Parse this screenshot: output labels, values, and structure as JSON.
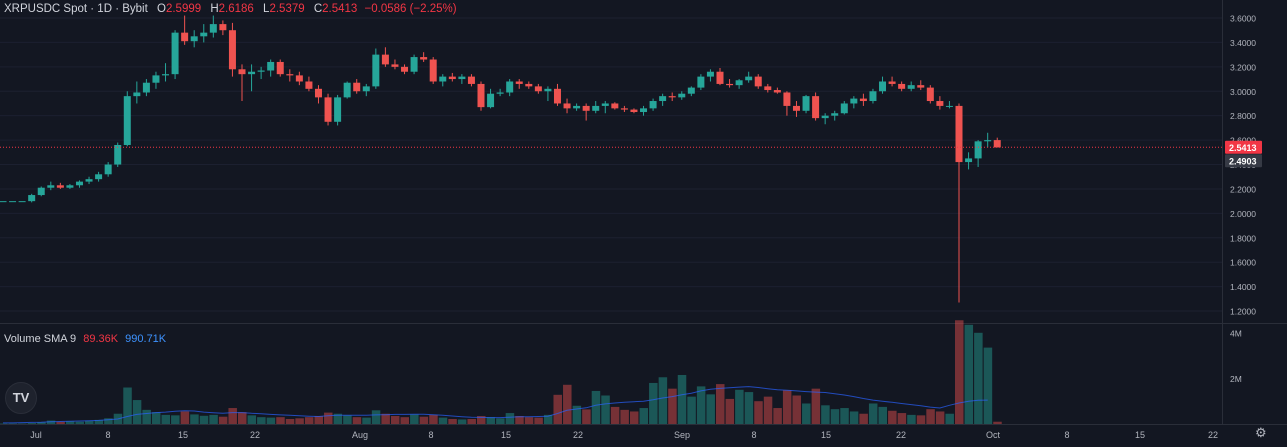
{
  "header": {
    "symbol": "XRPUSDC Spot · 1D · Bybit",
    "o_label": "O",
    "o_value": "2.5999",
    "h_label": "H",
    "h_value": "2.6186",
    "l_label": "L",
    "l_value": "2.5379",
    "c_label": "C",
    "c_value": "2.5413",
    "change": "−0.0586 (−2.25%)"
  },
  "volume_legend": {
    "label": "Volume SMA 9",
    "volume": "89.36K",
    "sma": "990.71K"
  },
  "logo_text": "TV",
  "settings_icon": "gear-icon",
  "colors": {
    "up": "#26a69a",
    "down": "#ef5350",
    "bg": "#131722",
    "sma": "#2962ff"
  },
  "chart_data": {
    "type": "candlestick",
    "price_axis": {
      "ticks": [
        "3.6000",
        "3.4000",
        "3.2000",
        "3.0000",
        "2.8000",
        "2.6000",
        "2.4000",
        "2.2000",
        "2.0000",
        "1.8000",
        "1.6000",
        "1.4000",
        "1.2000"
      ],
      "min": 1.1,
      "max": 3.7
    },
    "volume_axis": {
      "ticks": [
        "4M",
        "2M"
      ],
      "max": 4.3
    },
    "x_labels": [
      "Jul",
      "8",
      "15",
      "22",
      "Aug",
      "8",
      "15",
      "22",
      "Sep",
      "8",
      "15",
      "22",
      "Oct",
      "8",
      "15",
      "22"
    ],
    "last_price": "2.5413",
    "secondary_price": "2.4903",
    "candles": [
      [
        2.1,
        2.1,
        2.1,
        2.1,
        0.02
      ],
      [
        2.1,
        2.1,
        2.1,
        2.1,
        0.02
      ],
      [
        2.1,
        2.1,
        2.1,
        2.1,
        0.02
      ],
      [
        2.1,
        2.16,
        2.09,
        2.15,
        0.04
      ],
      [
        2.15,
        2.22,
        2.14,
        2.21,
        0.08
      ],
      [
        2.21,
        2.26,
        2.19,
        2.23,
        0.15
      ],
      [
        2.23,
        2.25,
        2.2,
        2.21,
        0.1
      ],
      [
        2.21,
        2.24,
        2.2,
        2.23,
        0.12
      ],
      [
        2.23,
        2.27,
        2.21,
        2.26,
        0.1
      ],
      [
        2.26,
        2.3,
        2.24,
        2.28,
        0.14
      ],
      [
        2.28,
        2.34,
        2.26,
        2.32,
        0.18
      ],
      [
        2.32,
        2.42,
        2.3,
        2.4,
        0.25
      ],
      [
        2.4,
        2.58,
        2.38,
        2.56,
        0.45
      ],
      [
        2.56,
        3.0,
        2.55,
        2.96,
        1.6
      ],
      [
        2.96,
        3.08,
        2.9,
        2.99,
        1.05
      ],
      [
        2.99,
        3.1,
        2.96,
        3.07,
        0.62
      ],
      [
        3.07,
        3.16,
        3.02,
        3.13,
        0.52
      ],
      [
        3.13,
        3.23,
        3.08,
        3.14,
        0.4
      ],
      [
        3.14,
        3.5,
        3.1,
        3.48,
        0.38
      ],
      [
        3.48,
        3.62,
        3.38,
        3.41,
        0.55
      ],
      [
        3.41,
        3.5,
        3.36,
        3.45,
        0.42
      ],
      [
        3.45,
        3.55,
        3.4,
        3.48,
        0.36
      ],
      [
        3.48,
        3.62,
        3.44,
        3.55,
        0.4
      ],
      [
        3.55,
        3.58,
        3.46,
        3.5,
        0.32
      ],
      [
        3.5,
        3.56,
        3.12,
        3.18,
        0.7
      ],
      [
        3.18,
        3.22,
        2.92,
        3.14,
        0.52
      ],
      [
        3.14,
        3.22,
        3.0,
        3.16,
        0.38
      ],
      [
        3.16,
        3.2,
        3.1,
        3.17,
        0.3
      ],
      [
        3.17,
        3.26,
        3.12,
        3.24,
        0.28
      ],
      [
        3.24,
        3.26,
        3.12,
        3.14,
        0.3
      ],
      [
        3.14,
        3.18,
        3.08,
        3.13,
        0.22
      ],
      [
        3.13,
        3.16,
        3.05,
        3.08,
        0.25
      ],
      [
        3.08,
        3.12,
        3.0,
        3.02,
        0.3
      ],
      [
        3.02,
        3.05,
        2.9,
        2.95,
        0.35
      ],
      [
        2.95,
        2.98,
        2.72,
        2.75,
        0.5
      ],
      [
        2.75,
        2.97,
        2.72,
        2.95,
        0.45
      ],
      [
        2.95,
        3.08,
        2.94,
        3.07,
        0.38
      ],
      [
        3.07,
        3.1,
        2.98,
        3.0,
        0.3
      ],
      [
        3.0,
        3.06,
        2.96,
        3.04,
        0.28
      ],
      [
        3.04,
        3.35,
        3.02,
        3.3,
        0.6
      ],
      [
        3.3,
        3.36,
        3.2,
        3.22,
        0.45
      ],
      [
        3.22,
        3.26,
        3.18,
        3.2,
        0.35
      ],
      [
        3.2,
        3.22,
        3.14,
        3.16,
        0.3
      ],
      [
        3.16,
        3.3,
        3.14,
        3.28,
        0.42
      ],
      [
        3.28,
        3.32,
        3.24,
        3.26,
        0.32
      ],
      [
        3.26,
        3.28,
        3.06,
        3.08,
        0.4
      ],
      [
        3.08,
        3.14,
        3.04,
        3.12,
        0.28
      ],
      [
        3.12,
        3.15,
        3.08,
        3.1,
        0.22
      ],
      [
        3.1,
        3.14,
        3.06,
        3.12,
        0.2
      ],
      [
        3.12,
        3.14,
        3.04,
        3.06,
        0.22
      ],
      [
        3.06,
        3.08,
        2.84,
        2.87,
        0.35
      ],
      [
        2.87,
        3.02,
        2.86,
        2.98,
        0.3
      ],
      [
        2.98,
        3.02,
        2.96,
        2.99,
        0.25
      ],
      [
        2.99,
        3.1,
        2.96,
        3.08,
        0.48
      ],
      [
        3.08,
        3.1,
        3.02,
        3.06,
        0.35
      ],
      [
        3.06,
        3.08,
        3.02,
        3.04,
        0.3
      ],
      [
        3.04,
        3.06,
        2.98,
        3.0,
        0.28
      ],
      [
        3.0,
        3.04,
        2.92,
        3.02,
        0.4
      ],
      [
        3.02,
        3.06,
        2.88,
        2.9,
        1.28
      ],
      [
        2.9,
        2.94,
        2.82,
        2.86,
        1.72
      ],
      [
        2.86,
        2.9,
        2.84,
        2.88,
        0.8
      ],
      [
        2.88,
        2.9,
        2.76,
        2.84,
        0.64
      ],
      [
        2.84,
        2.92,
        2.82,
        2.88,
        1.45
      ],
      [
        2.88,
        2.92,
        2.82,
        2.9,
        1.25
      ],
      [
        2.9,
        2.91,
        2.85,
        2.86,
        0.75
      ],
      [
        2.86,
        2.88,
        2.83,
        2.85,
        0.62
      ],
      [
        2.85,
        2.86,
        2.82,
        2.83,
        0.55
      ],
      [
        2.83,
        2.88,
        2.8,
        2.86,
        0.7
      ],
      [
        2.86,
        2.94,
        2.84,
        2.92,
        1.8
      ],
      [
        2.92,
        2.98,
        2.88,
        2.96,
        2.05
      ],
      [
        2.96,
        2.99,
        2.92,
        2.95,
        1.55
      ],
      [
        2.95,
        3.0,
        2.93,
        2.98,
        2.15
      ],
      [
        2.98,
        3.04,
        2.96,
        3.03,
        1.2
      ],
      [
        3.03,
        3.14,
        3.01,
        3.12,
        1.65
      ],
      [
        3.12,
        3.18,
        3.08,
        3.16,
        1.3
      ],
      [
        3.16,
        3.19,
        3.05,
        3.06,
        1.75
      ],
      [
        3.06,
        3.1,
        3.03,
        3.05,
        1.1
      ],
      [
        3.05,
        3.1,
        3.02,
        3.09,
        1.5
      ],
      [
        3.09,
        3.16,
        3.07,
        3.12,
        1.4
      ],
      [
        3.12,
        3.14,
        3.02,
        3.04,
        1.0
      ],
      [
        3.04,
        3.06,
        2.99,
        3.01,
        1.2
      ],
      [
        3.01,
        3.03,
        2.98,
        2.99,
        0.7
      ],
      [
        2.99,
        3.0,
        2.8,
        2.88,
        1.48
      ],
      [
        2.88,
        2.92,
        2.79,
        2.84,
        1.25
      ],
      [
        2.84,
        2.97,
        2.82,
        2.96,
        0.9
      ],
      [
        2.96,
        2.99,
        2.76,
        2.78,
        1.55
      ],
      [
        2.78,
        2.82,
        2.73,
        2.8,
        0.82
      ],
      [
        2.8,
        2.84,
        2.76,
        2.82,
        0.65
      ],
      [
        2.82,
        2.92,
        2.81,
        2.9,
        0.7
      ],
      [
        2.9,
        2.96,
        2.86,
        2.94,
        0.55
      ],
      [
        2.94,
        2.98,
        2.88,
        2.92,
        0.45
      ],
      [
        2.92,
        3.02,
        2.9,
        3.0,
        0.9
      ],
      [
        3.0,
        3.12,
        2.98,
        3.08,
        0.75
      ],
      [
        3.08,
        3.12,
        3.04,
        3.06,
        0.58
      ],
      [
        3.06,
        3.08,
        3.0,
        3.02,
        0.48
      ],
      [
        3.02,
        3.08,
        3.0,
        3.05,
        0.4
      ],
      [
        3.05,
        3.09,
        3.01,
        3.03,
        0.38
      ],
      [
        3.03,
        3.05,
        2.9,
        2.92,
        0.65
      ],
      [
        2.92,
        2.96,
        2.85,
        2.88,
        0.55
      ],
      [
        2.88,
        2.92,
        2.86,
        2.88,
        0.45
      ],
      [
        2.88,
        2.9,
        1.27,
        2.42,
        4.55
      ],
      [
        2.42,
        2.5,
        2.36,
        2.45,
        4.35
      ],
      [
        2.45,
        2.6,
        2.38,
        2.59,
        4.0
      ],
      [
        2.59,
        2.66,
        2.54,
        2.6,
        3.35
      ],
      [
        2.6,
        2.62,
        2.54,
        2.54,
        0.1
      ]
    ],
    "sma": [
      0.05,
      0.05,
      0.06,
      0.07,
      0.08,
      0.1,
      0.11,
      0.12,
      0.13,
      0.14,
      0.16,
      0.19,
      0.22,
      0.33,
      0.42,
      0.46,
      0.5,
      0.52,
      0.56,
      0.58,
      0.57,
      0.52,
      0.49,
      0.47,
      0.5,
      0.5,
      0.47,
      0.45,
      0.42,
      0.4,
      0.38,
      0.36,
      0.34,
      0.33,
      0.36,
      0.38,
      0.38,
      0.38,
      0.38,
      0.4,
      0.41,
      0.42,
      0.42,
      0.43,
      0.43,
      0.41,
      0.38,
      0.35,
      0.32,
      0.3,
      0.29,
      0.28,
      0.28,
      0.3,
      0.32,
      0.32,
      0.33,
      0.34,
      0.46,
      0.6,
      0.66,
      0.71,
      0.82,
      0.88,
      0.92,
      0.95,
      0.98,
      1.0,
      1.06,
      1.14,
      1.2,
      1.28,
      1.35,
      1.45,
      1.52,
      1.56,
      1.59,
      1.62,
      1.64,
      1.6,
      1.55,
      1.5,
      1.48,
      1.45,
      1.42,
      1.4,
      1.38,
      1.33,
      1.27,
      1.2,
      1.12,
      1.05,
      1.0,
      0.95,
      0.9,
      0.85,
      0.8,
      0.74,
      0.7,
      0.82,
      0.92,
      1.0,
      1.04,
      1.05
    ]
  }
}
